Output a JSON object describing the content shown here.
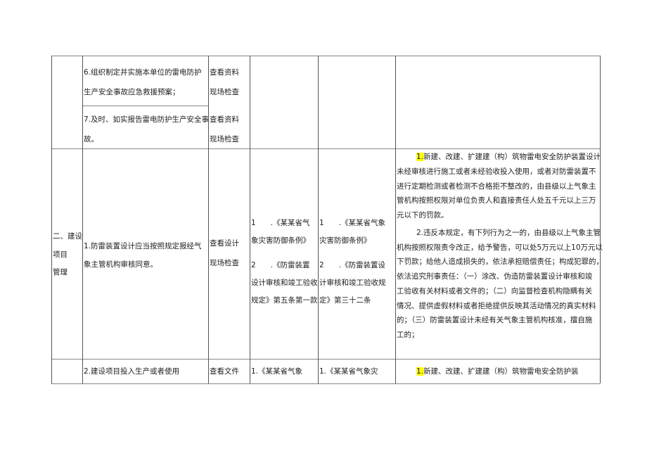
{
  "rows": [
    {
      "items": [
        {
          "lines": [
            "6.组织制定并实施本单位的雷电防护",
            "生产安全事故应急救援预案；"
          ],
          "methods": [
            "查看资料",
            "现场检查"
          ]
        },
        {
          "lines": [
            "7.及时、如实报告雷电防护生产安全事",
            "故。"
          ],
          "methods": [
            "查看资料",
            "现场检查"
          ]
        }
      ]
    },
    {
      "category": [
        "二、建设",
        "项目",
        "管理"
      ],
      "item": [
        "1.防雷装置设计应当按照规定报经气",
        "象主管机构审核同意。"
      ],
      "methods": [
        "查看设计",
        "现场检查"
      ],
      "basis": [
        "1　　.《某某省气",
        "象灾害防御条例》",
        "2　　.《防雷装置",
        "设计审核和竣工验收",
        "规定》第五条第一款"
      ],
      "penalty_basis": [
        "1　　.《某某省气象",
        "灾害防御条例》",
        "2　　.《防雷装置设",
        "计审核和竣工验收规",
        "定》第三十二条"
      ],
      "penalty_num": "1.",
      "penalty_p1": [
        "新建、改建、扩建建（构）筑物雷电安全防护装置设计",
        "未经审核进行施工或者未经验收投入使用，或者对防雷装置不",
        "进行定期检测或者检测不合格拒不整改的，由县级以上气象主",
        "管机构按照权限对单位负责人和直接责任人处五千元以上三万",
        "元以下的罚款。"
      ],
      "penalty_p2": [
        "2.违反本规定，有下列行为之一的，由县级以上气象主管",
        "机构按照权限责令改正，给予警告，可以处5万元以上10万元以",
        "下罚款；给他人造成损失的，依法承担赔偿责任；构成犯罪的，",
        "依法追究刑事责任：（一）涂改、伪造防雷装置设计审核和竣",
        "工验收有关材料或者文件的；（二）向监督检查机构隐瞒有关",
        "情况、提供虚假材料或者拒绝提供反映其活动情况的真实材料",
        "的；（三）防雷装置设计未经有关气象主管机构核准，擅自施",
        "工的；"
      ]
    },
    {
      "item": "2.建设项目投入生产或者使用",
      "method": "查看文件",
      "basis": "1.《某某省气象",
      "penalty_basis": "1.《某某省气象灾",
      "penalty_num": "1.",
      "penalty_text": "新建、改建、扩建建（构）筑物雷电安全防护装"
    }
  ],
  "colors": {
    "highlight": "#ffff00"
  }
}
